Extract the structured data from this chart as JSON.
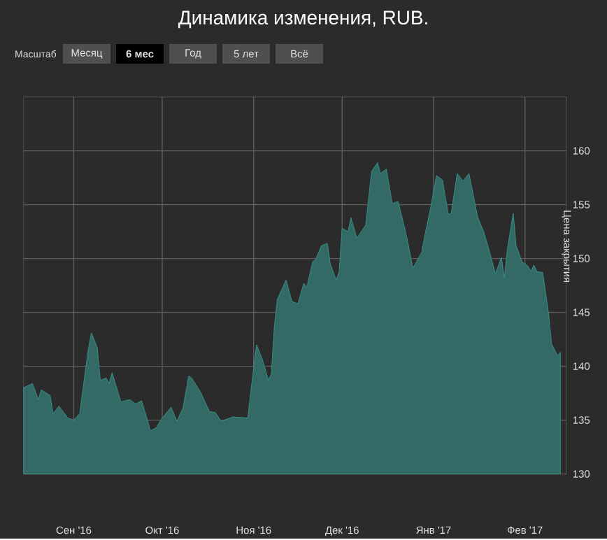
{
  "chart_data": {
    "type": "area",
    "title": "Динамика изменения, RUB.",
    "ylabel": "Цена закрытия",
    "annotations": [
      "Масштаб",
      "Месяц",
      "6 мес",
      "Год",
      "5 лет",
      "Всё"
    ],
    "x": [
      "2016-08-15",
      "2016-08-18",
      "2016-08-20",
      "2016-08-21",
      "2016-08-24",
      "2016-08-25",
      "2016-08-27",
      "2016-08-30",
      "2016-09-01",
      "2016-09-03",
      "2016-09-06",
      "2016-09-07",
      "2016-09-09",
      "2016-09-10",
      "2016-09-12",
      "2016-09-13",
      "2016-09-14",
      "2016-09-17",
      "2016-09-20",
      "2016-09-22",
      "2016-09-24",
      "2016-09-26",
      "2016-09-27",
      "2016-09-29",
      "2016-10-01",
      "2016-10-04",
      "2016-10-06",
      "2016-10-08",
      "2016-10-10",
      "2016-10-11",
      "2016-10-14",
      "2016-10-17",
      "2016-10-19",
      "2016-10-21",
      "2016-10-25",
      "2016-10-30",
      "2016-10-31",
      "2016-11-02",
      "2016-11-04",
      "2016-11-06",
      "2016-11-07",
      "2016-11-08",
      "2016-11-09",
      "2016-11-12",
      "2016-11-14",
      "2016-11-16",
      "2016-11-18",
      "2016-11-19",
      "2016-11-21",
      "2016-11-22",
      "2016-11-24",
      "2016-11-26",
      "2016-11-27",
      "2016-11-29",
      "2016-11-30",
      "2016-12-01",
      "2016-12-03",
      "2016-12-04",
      "2016-12-06",
      "2016-12-07",
      "2016-12-09",
      "2016-12-11",
      "2016-12-13",
      "2016-12-14",
      "2016-12-16",
      "2016-12-18",
      "2016-12-20",
      "2016-12-23",
      "2016-12-25",
      "2016-12-28",
      "2016-12-29",
      "2016-12-31",
      "2017-01-02",
      "2017-01-04",
      "2017-01-06",
      "2017-01-07",
      "2017-01-09",
      "2017-01-11",
      "2017-01-13",
      "2017-01-16",
      "2017-01-18",
      "2017-01-20",
      "2017-01-22",
      "2017-01-24",
      "2017-01-25",
      "2017-01-26",
      "2017-01-28",
      "2017-01-29",
      "2017-01-31",
      "2017-02-02",
      "2017-02-03",
      "2017-02-04",
      "2017-02-05",
      "2017-02-07",
      "2017-02-09",
      "2017-02-10",
      "2017-02-12",
      "2017-02-13"
    ],
    "series": [
      {
        "color": "#3a9e94",
        "values": [
          138.0,
          138.4,
          136.9,
          137.8,
          137.3,
          135.6,
          136.3,
          135.2,
          135.0,
          135.6,
          141.7,
          143.1,
          141.7,
          138.7,
          138.9,
          138.4,
          139.4,
          136.7,
          136.9,
          136.5,
          136.8,
          135.0,
          134.0,
          134.3,
          135.2,
          136.2,
          134.9,
          136.1,
          139.1,
          138.9,
          137.6,
          135.8,
          135.7,
          134.9,
          135.3,
          135.2,
          137.6,
          142.0,
          140.6,
          138.7,
          139.3,
          143.6,
          146.2,
          148.0,
          146.0,
          145.8,
          147.7,
          147.3,
          149.7,
          149.9,
          151.2,
          151.4,
          149.5,
          148.0,
          148.8,
          152.8,
          152.5,
          153.8,
          151.9,
          152.3,
          153.1,
          158.1,
          158.9,
          157.9,
          158.3,
          155.1,
          155.3,
          151.9,
          149.1,
          150.6,
          152.1,
          154.7,
          157.7,
          157.3,
          154.1,
          154.2,
          157.9,
          157.2,
          157.9,
          153.8,
          152.5,
          150.6,
          148.6,
          150.1,
          148.2,
          150.8,
          154.2,
          151.2,
          149.7,
          149.3,
          148.8,
          149.4,
          148.8,
          148.7,
          144.9,
          142.1,
          141.0,
          141.3
        ]
      }
    ],
    "xlim": [
      "2016-08-15",
      "2017-02-15"
    ],
    "xticks": [
      {
        "value": "2016-09-01",
        "label": "Сен '16"
      },
      {
        "value": "2016-10-01",
        "label": "Окт '16"
      },
      {
        "value": "2016-11-01",
        "label": "Ноя '16"
      },
      {
        "value": "2016-12-01",
        "label": "Дек '16"
      },
      {
        "value": "2017-01-01",
        "label": "Янв '17"
      },
      {
        "value": "2017-02-01",
        "label": "Фев '17"
      }
    ],
    "ylim": [
      130,
      165
    ],
    "yticks": [
      130,
      135,
      140,
      145,
      150,
      155,
      160
    ],
    "grid": true
  }
}
